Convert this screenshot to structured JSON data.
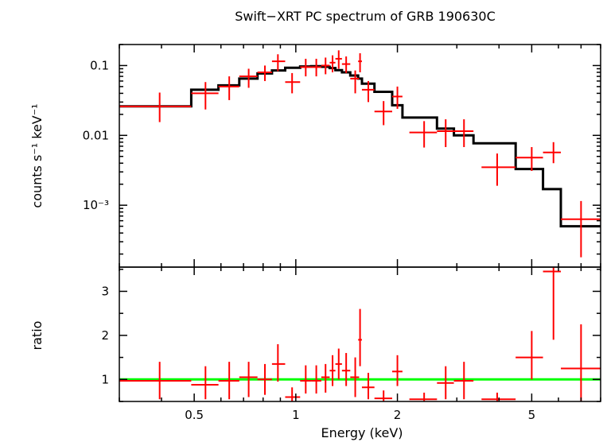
{
  "chart_data": {
    "type": "scatter",
    "title": "Swift−XRT PC spectrum of GRB 190630C",
    "xlabel": "Energy (keV)",
    "x_scale": "log",
    "xlim": [
      0.3,
      8.0
    ],
    "x_ticks": [
      0.5,
      1,
      2,
      5
    ],
    "x_tick_labels": [
      "0.5",
      "1",
      "2",
      "5"
    ],
    "colors": {
      "data": "#ff0000",
      "model": "#000000",
      "unity": "#00ff00"
    },
    "panels": [
      {
        "name": "spectrum",
        "ylabel": "counts s⁻¹ keV⁻¹",
        "y_scale": "log",
        "ylim": [
          0.00013,
          0.2
        ],
        "y_ticks": [
          0.1,
          0.01,
          0.001
        ],
        "y_tick_labels": [
          "0.1",
          "0.01",
          "10⁻³"
        ],
        "series": [
          {
            "type": "errorbar",
            "points": [
              {
                "x": 0.395,
                "xlo": 0.3,
                "xhi": 0.49,
                "y": 0.026,
                "ylo": 0.0155,
                "yhi": 0.041
              },
              {
                "x": 0.54,
                "xlo": 0.49,
                "xhi": 0.59,
                "y": 0.04,
                "ylo": 0.0235,
                "yhi": 0.058
              },
              {
                "x": 0.635,
                "xlo": 0.59,
                "xhi": 0.68,
                "y": 0.05,
                "ylo": 0.032,
                "yhi": 0.07
              },
              {
                "x": 0.725,
                "xlo": 0.68,
                "xhi": 0.77,
                "y": 0.07,
                "ylo": 0.048,
                "yhi": 0.09
              },
              {
                "x": 0.81,
                "xlo": 0.77,
                "xhi": 0.85,
                "y": 0.08,
                "ylo": 0.06,
                "yhi": 0.1
              },
              {
                "x": 0.885,
                "xlo": 0.85,
                "xhi": 0.93,
                "y": 0.115,
                "ylo": 0.083,
                "yhi": 0.145
              },
              {
                "x": 0.975,
                "xlo": 0.93,
                "xhi": 1.03,
                "y": 0.058,
                "ylo": 0.04,
                "yhi": 0.078
              },
              {
                "x": 1.07,
                "xlo": 1.03,
                "xhi": 1.11,
                "y": 0.095,
                "ylo": 0.07,
                "yhi": 0.125
              },
              {
                "x": 1.15,
                "xlo": 1.11,
                "xhi": 1.19,
                "y": 0.095,
                "ylo": 0.07,
                "yhi": 0.125
              },
              {
                "x": 1.225,
                "xlo": 1.19,
                "xhi": 1.26,
                "y": 0.1,
                "ylo": 0.075,
                "yhi": 0.13
              },
              {
                "x": 1.285,
                "xlo": 1.26,
                "xhi": 1.31,
                "y": 0.11,
                "ylo": 0.08,
                "yhi": 0.14
              },
              {
                "x": 1.34,
                "xlo": 1.31,
                "xhi": 1.37,
                "y": 0.125,
                "ylo": 0.09,
                "yhi": 0.165
              },
              {
                "x": 1.41,
                "xlo": 1.37,
                "xhi": 1.45,
                "y": 0.105,
                "ylo": 0.078,
                "yhi": 0.135
              },
              {
                "x": 1.5,
                "xlo": 1.45,
                "xhi": 1.54,
                "y": 0.065,
                "ylo": 0.04,
                "yhi": 0.085
              },
              {
                "x": 1.55,
                "xlo": 1.53,
                "xhi": 1.57,
                "y": 0.115,
                "ylo": 0.08,
                "yhi": 0.15
              },
              {
                "x": 1.64,
                "xlo": 1.57,
                "xhi": 1.71,
                "y": 0.045,
                "ylo": 0.03,
                "yhi": 0.06
              },
              {
                "x": 1.82,
                "xlo": 1.71,
                "xhi": 1.93,
                "y": 0.022,
                "ylo": 0.014,
                "yhi": 0.031
              },
              {
                "x": 2.0,
                "xlo": 1.93,
                "xhi": 2.07,
                "y": 0.036,
                "ylo": 0.024,
                "yhi": 0.05
              },
              {
                "x": 2.4,
                "xlo": 2.17,
                "xhi": 2.62,
                "y": 0.011,
                "ylo": 0.0067,
                "yhi": 0.016
              },
              {
                "x": 2.78,
                "xlo": 2.62,
                "xhi": 2.94,
                "y": 0.0115,
                "ylo": 0.0068,
                "yhi": 0.017
              },
              {
                "x": 3.15,
                "xlo": 2.94,
                "xhi": 3.36,
                "y": 0.0115,
                "ylo": 0.0068,
                "yhi": 0.017
              },
              {
                "x": 3.95,
                "xlo": 3.55,
                "xhi": 4.48,
                "y": 0.0035,
                "ylo": 0.0019,
                "yhi": 0.0055
              },
              {
                "x": 5.0,
                "xlo": 4.48,
                "xhi": 5.4,
                "y": 0.0048,
                "ylo": 0.0031,
                "yhi": 0.0068
              },
              {
                "x": 5.8,
                "xlo": 5.4,
                "xhi": 6.1,
                "y": 0.0057,
                "ylo": 0.004,
                "yhi": 0.008
              },
              {
                "x": 7.0,
                "xlo": 6.1,
                "xhi": 8.0,
                "y": 0.00063,
                "ylo": 0.00018,
                "yhi": 0.00115
              }
            ]
          },
          {
            "type": "step",
            "edges": [
              0.3,
              0.49,
              0.59,
              0.68,
              0.77,
              0.85,
              0.93,
              1.03,
              1.11,
              1.19,
              1.26,
              1.31,
              1.37,
              1.45,
              1.53,
              1.57,
              1.71,
              1.93,
              2.07,
              2.62,
              2.94,
              3.36,
              4.48,
              5.4,
              6.1,
              8.0
            ],
            "values": [
              0.026,
              0.045,
              0.052,
              0.065,
              0.077,
              0.085,
              0.093,
              0.097,
              0.098,
              0.096,
              0.092,
              0.086,
              0.08,
              0.072,
              0.065,
              0.055,
              0.042,
              0.027,
              0.018,
              0.0125,
              0.01,
              0.0077,
              0.0033,
              0.0017,
              0.0005
            ]
          }
        ]
      },
      {
        "name": "ratio",
        "ylabel": "ratio",
        "y_scale": "linear",
        "ylim": [
          0.5,
          3.55
        ],
        "y_ticks": [
          1,
          2,
          3
        ],
        "y_tick_labels": [
          "1",
          "2",
          "3"
        ],
        "unity": 1,
        "series": [
          {
            "type": "errorbar",
            "points": [
              {
                "x": 0.395,
                "xlo": 0.3,
                "xhi": 0.49,
                "y": 0.97,
                "ylo": 0.55,
                "yhi": 1.4
              },
              {
                "x": 0.54,
                "xlo": 0.49,
                "xhi": 0.59,
                "y": 0.88,
                "ylo": 0.55,
                "yhi": 1.3
              },
              {
                "x": 0.635,
                "xlo": 0.59,
                "xhi": 0.68,
                "y": 0.97,
                "ylo": 0.55,
                "yhi": 1.4
              },
              {
                "x": 0.725,
                "xlo": 0.68,
                "xhi": 0.77,
                "y": 1.05,
                "ylo": 0.6,
                "yhi": 1.4
              },
              {
                "x": 0.81,
                "xlo": 0.77,
                "xhi": 0.85,
                "y": 1.0,
                "ylo": 0.65,
                "yhi": 1.35
              },
              {
                "x": 0.885,
                "xlo": 0.85,
                "xhi": 0.93,
                "y": 1.35,
                "ylo": 0.95,
                "yhi": 1.8
              },
              {
                "x": 0.975,
                "xlo": 0.93,
                "xhi": 1.03,
                "y": 0.6,
                "ylo": 0.5,
                "yhi": 0.82
              },
              {
                "x": 1.07,
                "xlo": 1.03,
                "xhi": 1.11,
                "y": 0.97,
                "ylo": 0.68,
                "yhi": 1.32
              },
              {
                "x": 1.15,
                "xlo": 1.11,
                "xhi": 1.19,
                "y": 0.97,
                "ylo": 0.68,
                "yhi": 1.32
              },
              {
                "x": 1.225,
                "xlo": 1.19,
                "xhi": 1.26,
                "y": 1.05,
                "ylo": 0.7,
                "yhi": 1.35
              },
              {
                "x": 1.285,
                "xlo": 1.26,
                "xhi": 1.31,
                "y": 1.2,
                "ylo": 0.85,
                "yhi": 1.55
              },
              {
                "x": 1.34,
                "xlo": 1.31,
                "xhi": 1.37,
                "y": 1.35,
                "ylo": 1.0,
                "yhi": 1.7
              },
              {
                "x": 1.41,
                "xlo": 1.37,
                "xhi": 1.45,
                "y": 1.2,
                "ylo": 0.85,
                "yhi": 1.6
              },
              {
                "x": 1.5,
                "xlo": 1.45,
                "xhi": 1.54,
                "y": 1.05,
                "ylo": 0.6,
                "yhi": 1.5
              },
              {
                "x": 1.55,
                "xlo": 1.53,
                "xhi": 1.57,
                "y": 1.9,
                "ylo": 1.3,
                "yhi": 2.6
              },
              {
                "x": 1.64,
                "xlo": 1.57,
                "xhi": 1.71,
                "y": 0.82,
                "ylo": 0.55,
                "yhi": 1.15
              },
              {
                "x": 1.82,
                "xlo": 1.71,
                "xhi": 1.93,
                "y": 0.57,
                "ylo": 0.5,
                "yhi": 0.75
              },
              {
                "x": 2.0,
                "xlo": 1.93,
                "xhi": 2.07,
                "y": 1.18,
                "ylo": 0.85,
                "yhi": 1.55
              },
              {
                "x": 2.4,
                "xlo": 2.17,
                "xhi": 2.62,
                "y": 0.55,
                "ylo": 0.5,
                "yhi": 0.7
              },
              {
                "x": 2.78,
                "xlo": 2.62,
                "xhi": 2.94,
                "y": 0.92,
                "ylo": 0.55,
                "yhi": 1.3
              },
              {
                "x": 3.15,
                "xlo": 2.94,
                "xhi": 3.36,
                "y": 0.97,
                "ylo": 0.55,
                "yhi": 1.4
              },
              {
                "x": 3.95,
                "xlo": 3.55,
                "xhi": 4.48,
                "y": 0.55,
                "ylo": 0.5,
                "yhi": 0.7
              },
              {
                "x": 5.0,
                "xlo": 4.48,
                "xhi": 5.4,
                "y": 1.5,
                "ylo": 1.0,
                "yhi": 2.1
              },
              {
                "x": 5.8,
                "xlo": 5.4,
                "xhi": 6.1,
                "y": 3.45,
                "ylo": 1.9,
                "yhi": 3.55
              },
              {
                "x": 7.0,
                "xlo": 6.1,
                "xhi": 8.0,
                "y": 1.25,
                "ylo": 0.5,
                "yhi": 2.25
              }
            ]
          }
        ]
      }
    ]
  }
}
